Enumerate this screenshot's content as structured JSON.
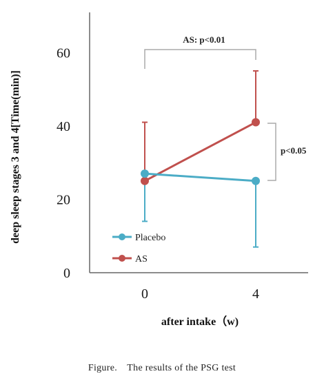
{
  "chart_data": {
    "type": "line",
    "x": [
      0,
      4
    ],
    "x_tick_labels": [
      "0",
      "4"
    ],
    "xlabel": "after intake（w)",
    "ylabel": "deep sleep stages 3 and 4[Time(min)]",
    "ylim": [
      0,
      70
    ],
    "y_ticks": [
      0,
      20,
      40,
      60
    ],
    "y_tick_labels": [
      "0",
      "20",
      "40",
      "60"
    ],
    "grid": false,
    "legend_position": "bottom-left",
    "series": [
      {
        "name": "Placebo",
        "color": "#4BACC6",
        "values": [
          27,
          25
        ],
        "error_lower": [
          13,
          18
        ],
        "error_upper": [
          0,
          0
        ]
      },
      {
        "name": "AS",
        "color": "#C0504D",
        "values": [
          25,
          41
        ],
        "error_lower": [
          0,
          0
        ],
        "error_upper": [
          16,
          14
        ]
      }
    ],
    "annotations": [
      {
        "text": "AS: p<0.01",
        "type": "bracket-top",
        "from_x": 0,
        "to_x": 4
      },
      {
        "text": "p<0.05",
        "type": "bracket-right",
        "x": 4,
        "from_y": 25,
        "to_y": 41
      }
    ]
  },
  "caption": "Figure.　The results of the PSG test"
}
